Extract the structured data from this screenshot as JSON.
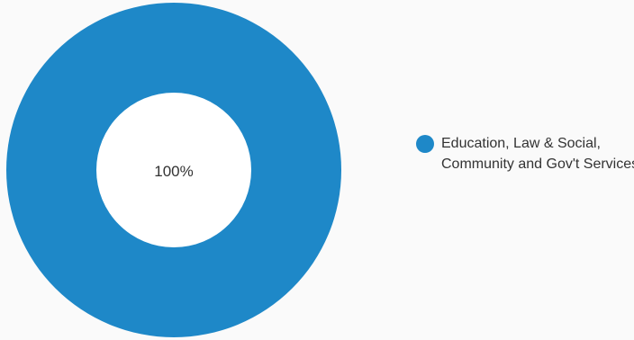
{
  "colors": {
    "background": "#fafafa",
    "hole": "#ffffff",
    "center_text": "#333333",
    "series": [
      "#1e88c8"
    ]
  },
  "chart_data": {
    "type": "pie",
    "donut": true,
    "slices": [
      {
        "label": "Education, Law & Social, Community and Gov't Services",
        "value": 100,
        "color": "#1e88c8",
        "data_label": "100%"
      }
    ],
    "center_label": "100%",
    "legend_position": "right"
  }
}
